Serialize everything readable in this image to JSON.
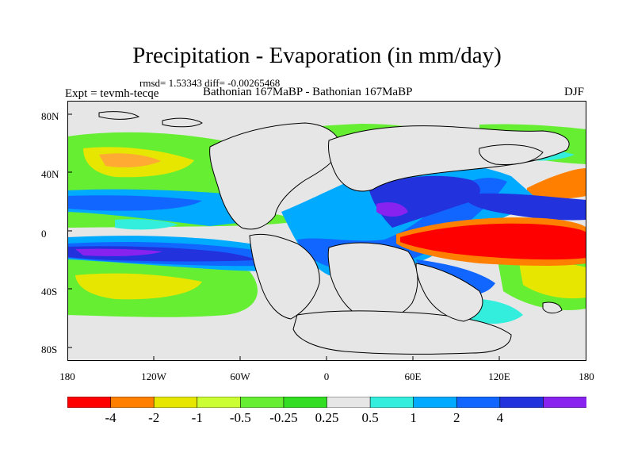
{
  "title": "Precipitation - Evaporation (in mm/day)",
  "stats": "rmsd= 1.53343 diff= -0.00265468",
  "expt": "Expt = tevmh-tecqe",
  "comparison": "Bathonian 167MaBP - Bathonian 167MaBP",
  "season": "DJF",
  "y_ticks": [
    "80N",
    "40N",
    "0",
    "40S",
    "80S"
  ],
  "x_ticks": [
    "180",
    "120W",
    "60W",
    "0",
    "60E",
    "120E",
    "180"
  ],
  "colorbar": {
    "labels": [
      "-4",
      "-2",
      "-1",
      "-0.5",
      "-0.25",
      "0.25",
      "0.5",
      "1",
      "2",
      "4"
    ],
    "colors": [
      "#ff0000",
      "#ff8000",
      "#e6e600",
      "#ccff33",
      "#66ee33",
      "#33dd22",
      "#e6e6e6",
      "#33eedd",
      "#00aaff",
      "#1166ff",
      "#2233dd",
      "#8822ee"
    ]
  },
  "palette": {
    "neutral": "#e6e6e6",
    "coast": "#000000"
  }
}
